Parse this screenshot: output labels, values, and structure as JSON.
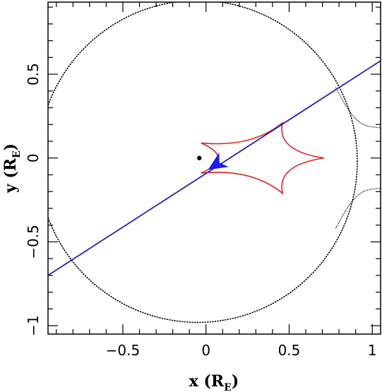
{
  "chart_data": {
    "type": "line",
    "xlabel": {
      "main": "x (R",
      "sub": "E",
      "close": ")"
    },
    "ylabel": {
      "main": "y (R",
      "sub": "E",
      "close": ")"
    },
    "xlim": [
      -0.95,
      1.05
    ],
    "ylim": [
      -1.05,
      0.93
    ],
    "xticks": [
      {
        "value": -0.5,
        "label": "−0.5"
      },
      {
        "value": 0,
        "label": "0"
      },
      {
        "value": 0.5,
        "label": "0.5"
      },
      {
        "value": 1,
        "label": "1"
      }
    ],
    "yticks": [
      {
        "value": -1,
        "label": "−1"
      },
      {
        "value": -0.5,
        "label": "−0.5"
      },
      {
        "value": 0,
        "label": "0"
      },
      {
        "value": 0.5,
        "label": "0.5"
      }
    ],
    "x_minor_step": 0.1,
    "y_minor_step": 0.1,
    "critical_curve": {
      "color": "#000000",
      "style": "dotted",
      "center": [
        -0.05,
        -0.02
      ],
      "radius": 0.96,
      "outer_branch_upper": [
        [
          0.78,
          0.42
        ],
        [
          0.84,
          0.31
        ],
        [
          0.9,
          0.23
        ],
        [
          0.96,
          0.19
        ],
        [
          1.05,
          0.18
        ]
      ],
      "outer_branch_lower": [
        [
          0.78,
          -0.42
        ],
        [
          0.84,
          -0.31
        ],
        [
          0.9,
          -0.23
        ],
        [
          0.96,
          -0.19
        ],
        [
          1.05,
          -0.18
        ]
      ]
    },
    "caustic": {
      "color": "#dd2222",
      "cusps": [
        [
          0.71,
          0.0
        ],
        [
          0.46,
          0.21
        ],
        [
          -0.03,
          0.09
        ],
        [
          -0.03,
          -0.09
        ],
        [
          0.46,
          -0.21
        ]
      ]
    },
    "lens_position": {
      "x": -0.04,
      "y": 0.0,
      "color": "#000000"
    },
    "source_trajectory": {
      "color": "#2222bb",
      "points": [
        [
          -0.95,
          -0.7
        ],
        [
          1.05,
          0.58
        ]
      ]
    },
    "arrow": {
      "x": 0.06,
      "y": -0.04,
      "direction_dx": 1.0,
      "direction_dy": 0.64,
      "color": "#1a1aff"
    }
  }
}
